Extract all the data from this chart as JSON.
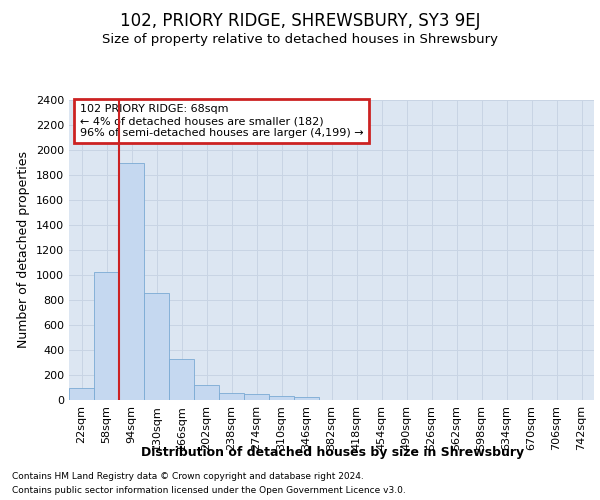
{
  "title": "102, PRIORY RIDGE, SHREWSBURY, SY3 9EJ",
  "subtitle": "Size of property relative to detached houses in Shrewsbury",
  "xlabel": "Distribution of detached houses by size in Shrewsbury",
  "ylabel": "Number of detached properties",
  "footnote1": "Contains HM Land Registry data © Crown copyright and database right 2024.",
  "footnote2": "Contains public sector information licensed under the Open Government Licence v3.0.",
  "bar_labels": [
    "22sqm",
    "58sqm",
    "94sqm",
    "130sqm",
    "166sqm",
    "202sqm",
    "238sqm",
    "274sqm",
    "310sqm",
    "346sqm",
    "382sqm",
    "418sqm",
    "454sqm",
    "490sqm",
    "526sqm",
    "562sqm",
    "598sqm",
    "634sqm",
    "670sqm",
    "706sqm",
    "742sqm"
  ],
  "bar_values": [
    95,
    1025,
    1900,
    855,
    325,
    120,
    55,
    50,
    35,
    25,
    0,
    0,
    0,
    0,
    0,
    0,
    0,
    0,
    0,
    0,
    0
  ],
  "bar_color": "#c5d8f0",
  "bar_edge_color": "#7aaad4",
  "grid_color": "#c8d4e4",
  "bg_color": "#dce6f2",
  "annotation_text": "102 PRIORY RIDGE: 68sqm\n← 4% of detached houses are smaller (182)\n96% of semi-detached houses are larger (4,199) →",
  "annotation_box_facecolor": "#ffffff",
  "annotation_box_edgecolor": "#cc2222",
  "red_line_color": "#cc2222",
  "red_line_x": 1.5,
  "ylim_max": 2400,
  "yticks": [
    0,
    200,
    400,
    600,
    800,
    1000,
    1200,
    1400,
    1600,
    1800,
    2000,
    2200,
    2400
  ],
  "title_fontsize": 12,
  "subtitle_fontsize": 9.5,
  "ylabel_fontsize": 9,
  "xlabel_fontsize": 9,
  "tick_fontsize": 8,
  "annotation_fontsize": 8,
  "footnote_fontsize": 6.5
}
